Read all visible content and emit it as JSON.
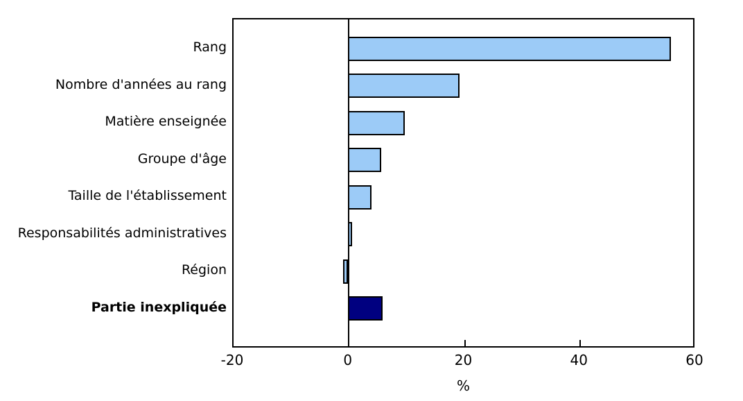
{
  "chart_data": {
    "type": "bar",
    "orientation": "horizontal",
    "title": "",
    "xlabel": "%",
    "ylabel": "",
    "xlim": [
      -20,
      60
    ],
    "xticks": [
      -20,
      0,
      20,
      40,
      60
    ],
    "grid": false,
    "legend": "none",
    "categories": [
      "Rang",
      "Nombre d'années au rang",
      "Matière enseignée",
      "Groupe d'âge",
      "Taille de l'établissement",
      "Responsabilités administratives",
      "Région",
      "Partie inexpliquée"
    ],
    "values": [
      55.9,
      19.3,
      9.9,
      5.8,
      4.1,
      0.7,
      -0.8,
      6.0
    ],
    "bold_category": "Partie inexpliquée",
    "bar_fill_color": "#9CCBF7",
    "highlight_fill_color": "#000080",
    "bar_border_color": "#000000",
    "bar_colors": [
      "#9CCBF7",
      "#9CCBF7",
      "#9CCBF7",
      "#9CCBF7",
      "#9CCBF7",
      "#9CCBF7",
      "#9CCBF7",
      "#000080"
    ]
  }
}
